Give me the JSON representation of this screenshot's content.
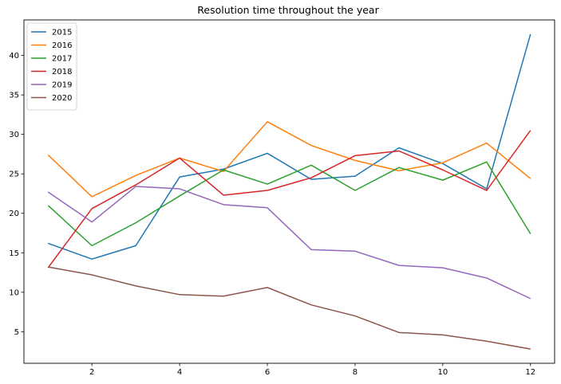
{
  "chart_data": {
    "type": "line",
    "title": "Resolution time throughout the year",
    "xlabel": "",
    "ylabel": "",
    "x": [
      1,
      2,
      3,
      4,
      5,
      6,
      7,
      8,
      9,
      10,
      11,
      12
    ],
    "xlim": [
      0.45,
      12.55
    ],
    "ylim": [
      1,
      44.5
    ],
    "xticks": [
      2,
      4,
      6,
      8,
      10,
      12
    ],
    "yticks": [
      5,
      10,
      15,
      20,
      25,
      30,
      35,
      40
    ],
    "grid": false,
    "legend_position": "top-left",
    "series": [
      {
        "name": "2015",
        "color": "#1f77b4",
        "values": [
          16.2,
          14.2,
          15.9,
          24.6,
          25.6,
          27.6,
          24.3,
          24.7,
          28.3,
          26.3,
          23.1,
          42.7
        ]
      },
      {
        "name": "2016",
        "color": "#ff7f0e",
        "values": [
          27.4,
          22.1,
          24.8,
          27.0,
          25.3,
          31.6,
          28.6,
          26.7,
          25.4,
          26.4,
          28.9,
          24.4
        ]
      },
      {
        "name": "2017",
        "color": "#2ca02c",
        "values": [
          21.0,
          15.9,
          18.8,
          22.2,
          25.5,
          23.7,
          26.1,
          22.9,
          25.8,
          24.2,
          26.5,
          17.4
        ]
      },
      {
        "name": "2018",
        "color": "#d62728",
        "values": [
          13.1,
          20.6,
          23.6,
          27.0,
          22.3,
          22.9,
          24.5,
          27.3,
          27.9,
          25.5,
          22.9,
          30.5
        ]
      },
      {
        "name": "2019",
        "color": "#9467bd",
        "values": [
          22.7,
          18.9,
          23.4,
          23.1,
          21.1,
          20.7,
          15.4,
          15.2,
          13.4,
          13.1,
          11.8,
          9.2
        ]
      },
      {
        "name": "2020",
        "color": "#8c564b",
        "values": [
          13.2,
          12.2,
          10.8,
          9.7,
          9.5,
          10.6,
          8.4,
          7.0,
          4.9,
          4.6,
          3.8,
          2.8
        ]
      }
    ]
  }
}
